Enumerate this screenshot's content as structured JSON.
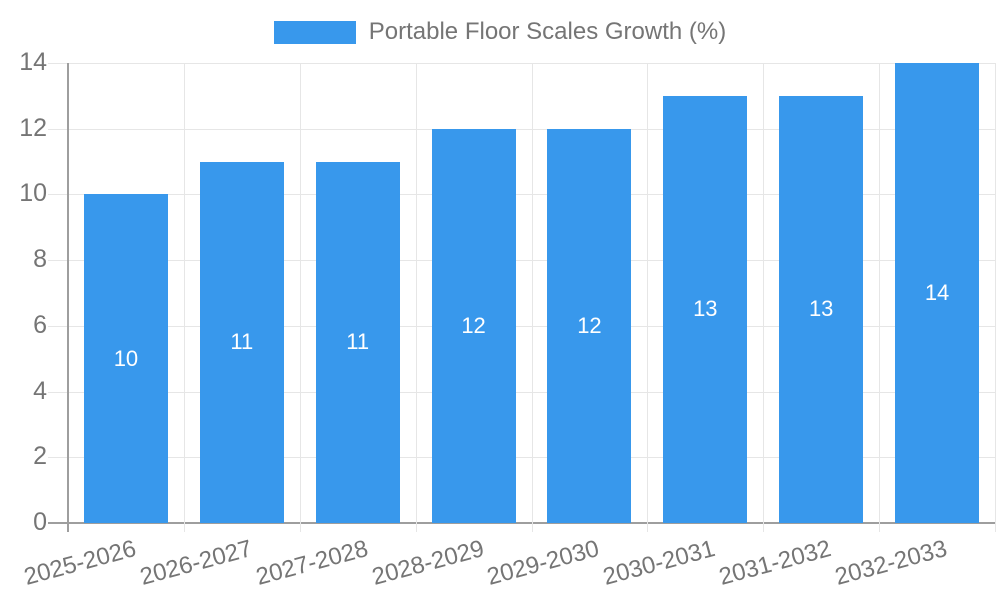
{
  "chart_data": {
    "type": "bar",
    "title": "Portable Floor Scales Growth (%)",
    "categories": [
      "2025-2026",
      "2026-2027",
      "2027-2028",
      "2028-2029",
      "2029-2030",
      "2030-2031",
      "2031-2032",
      "2032-2033"
    ],
    "values": [
      10,
      11,
      11,
      12,
      12,
      13,
      13,
      14
    ],
    "bar_labels": [
      "10",
      "11",
      "11",
      "12",
      "12",
      "13",
      "13",
      "14"
    ],
    "xlabel": "",
    "ylabel": "",
    "ylim": [
      0,
      14
    ],
    "yticks": [
      0,
      2,
      4,
      6,
      8,
      10,
      12,
      14
    ],
    "grid": true,
    "legend_position": "top",
    "colors": {
      "bar": "#3898EC",
      "bar_label": "#FFFFFF",
      "axis_text": "#757575",
      "grid_line": "#E6E6E6",
      "axis_line": "#9E9E9E"
    }
  }
}
